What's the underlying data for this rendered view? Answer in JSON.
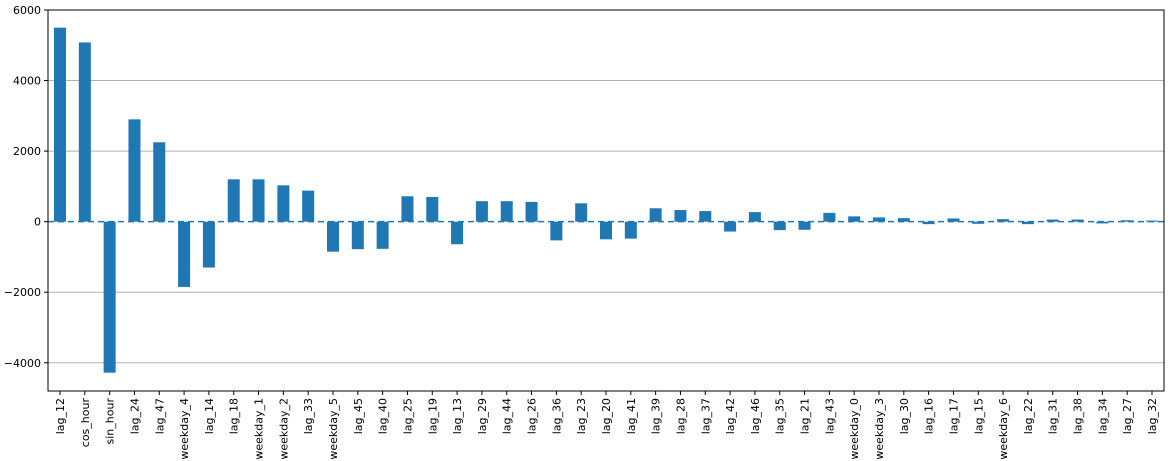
{
  "chart_data": {
    "type": "bar",
    "title": "",
    "xlabel": "",
    "ylabel": "",
    "ylim": [
      -4800,
      6000
    ],
    "yticks": [
      -4000,
      -2000,
      0,
      2000,
      4000,
      6000
    ],
    "ytick_labels": [
      "−4000",
      "−2000",
      "0",
      "2000",
      "4000",
      "6000"
    ],
    "grid": "horizontal",
    "baseline": "dashed",
    "bar_color": "#1f77b4",
    "categories": [
      "lag_12",
      "cos_hour",
      "sin_hour",
      "lag_24",
      "lag_47",
      "weekday_4",
      "lag_14",
      "lag_18",
      "weekday_1",
      "weekday_2",
      "lag_33",
      "weekday_5",
      "lag_45",
      "lag_40",
      "lag_25",
      "lag_19",
      "lag_13",
      "lag_29",
      "lag_44",
      "lag_26",
      "lag_36",
      "lag_23",
      "lag_20",
      "lag_41",
      "lag_39",
      "lag_28",
      "lag_37",
      "lag_42",
      "lag_46",
      "lag_35",
      "lag_21",
      "lag_43",
      "weekday_0",
      "weekday_3",
      "lag_30",
      "lag_16",
      "lag_17",
      "lag_15",
      "weekday_6",
      "lag_22",
      "lag_31",
      "lag_38",
      "lag_34",
      "lag_27",
      "lag_32"
    ],
    "values": [
      5500,
      5080,
      -4280,
      2900,
      2250,
      -1850,
      -1300,
      1200,
      1200,
      1030,
      880,
      -850,
      -780,
      -770,
      720,
      700,
      -640,
      580,
      580,
      560,
      -530,
      520,
      -500,
      -480,
      380,
      330,
      300,
      -280,
      270,
      -240,
      -230,
      250,
      150,
      120,
      100,
      -70,
      90,
      -60,
      70,
      -70,
      60,
      60,
      -50,
      40,
      30
    ]
  }
}
